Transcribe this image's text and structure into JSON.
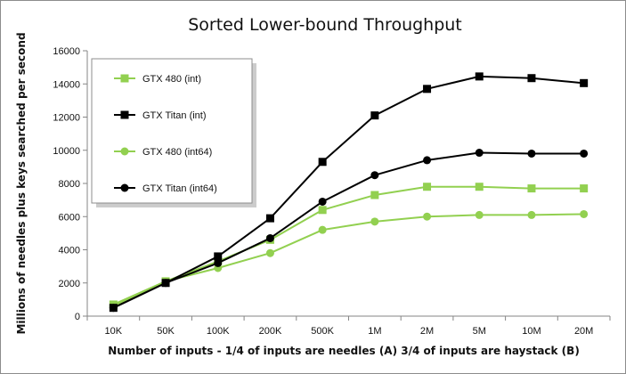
{
  "chart_data": {
    "type": "line",
    "title": "Sorted Lower-bound Throughput",
    "xlabel": "Number of inputs - 1/4 of inputs are needles (A) 3/4 of inputs are haystack (B)",
    "ylabel": "Millions of needles plus keys searched per second",
    "categories": [
      "10K",
      "50K",
      "100K",
      "200K",
      "500K",
      "1M",
      "2M",
      "5M",
      "10M",
      "20M"
    ],
    "ylim": [
      0,
      16000
    ],
    "yticks": [
      0,
      2000,
      4000,
      6000,
      8000,
      10000,
      12000,
      14000,
      16000
    ],
    "grid": false,
    "legend_position": "top-left",
    "series": [
      {
        "name": "GTX 480 (int)",
        "marker": "square",
        "color": "#92d050",
        "values": [
          700,
          2100,
          3300,
          4600,
          6400,
          7300,
          7800,
          7800,
          7700,
          7700
        ]
      },
      {
        "name": "GTX Titan (int)",
        "marker": "square",
        "color": "#000000",
        "values": [
          500,
          2000,
          3600,
          5900,
          9300,
          12100,
          13700,
          14450,
          14350,
          14050
        ]
      },
      {
        "name": "GTX 480 (int64)",
        "marker": "circle",
        "color": "#92d050",
        "values": [
          600,
          2100,
          2900,
          3800,
          5200,
          5700,
          6000,
          6100,
          6100,
          6150
        ]
      },
      {
        "name": "GTX Titan (int64)",
        "marker": "circle",
        "color": "#000000",
        "values": [
          500,
          2000,
          3200,
          4700,
          6900,
          8500,
          9400,
          9850,
          9800,
          9800
        ]
      }
    ]
  }
}
